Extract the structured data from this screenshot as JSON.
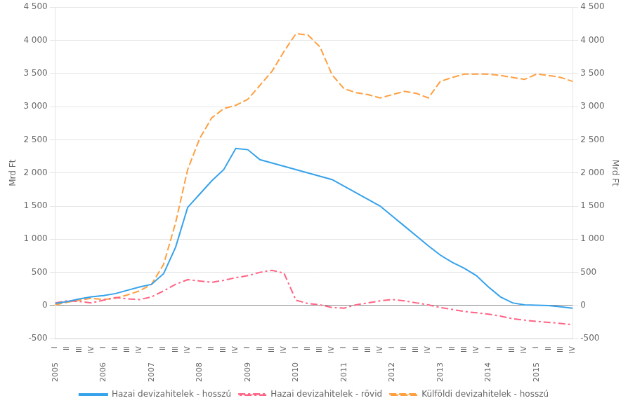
{
  "chart_data": {
    "type": "line",
    "y_label": "Mrd Ft",
    "y2_label": "Mrd Ft",
    "categories": [
      "I",
      "II",
      "III",
      "IV",
      "I",
      "II",
      "III",
      "IV",
      "I",
      "II",
      "III",
      "IV",
      "I",
      "II",
      "III",
      "IV",
      "I",
      "II",
      "III",
      "IV",
      "I",
      "II",
      "III",
      "IV",
      "I",
      "II",
      "III",
      "IV",
      "I",
      "II",
      "III",
      "IV",
      "I",
      "II",
      "III",
      "IV",
      "I",
      "II",
      "III",
      "IV",
      "I",
      "II",
      "III",
      "IV"
    ],
    "annotations": [
      "2005",
      "2006",
      "2007",
      "2008",
      "2009",
      "2010",
      "2011",
      "2012",
      "2013",
      "2014",
      "2015"
    ],
    "series": [
      {
        "name": "Hazai devizahitelek - hosszú",
        "line_style": "solid",
        "marker": "none",
        "values": [
          30,
          60,
          100,
          130,
          150,
          180,
          230,
          280,
          320,
          480,
          880,
          1480,
          1680,
          1880,
          2050,
          2370,
          2350,
          2200,
          2150,
          2100,
          2050,
          2000,
          1950,
          1900,
          1800,
          1700,
          1600,
          1500,
          1350,
          1200,
          1050,
          900,
          760,
          650,
          560,
          450,
          280,
          130,
          40,
          10,
          5,
          0,
          -20,
          -40
        ]
      },
      {
        "name": "Hazai devizahitelek - rövid",
        "line_style": "dashdot",
        "marker": "none",
        "values": [
          40,
          70,
          60,
          40,
          80,
          120,
          100,
          90,
          130,
          220,
          320,
          390,
          370,
          350,
          380,
          420,
          450,
          500,
          530,
          490,
          80,
          30,
          10,
          -30,
          -40,
          10,
          40,
          70,
          90,
          70,
          40,
          10,
          -30,
          -60,
          -90,
          -110,
          -130,
          -160,
          -200,
          -220,
          -240,
          -255,
          -270,
          -290
        ]
      },
      {
        "name": "Külföldi devizahitelek - hosszú",
        "line_style": "dashed",
        "marker": "none",
        "values": [
          10,
          50,
          80,
          110,
          90,
          110,
          160,
          220,
          320,
          620,
          1250,
          2050,
          2520,
          2830,
          2970,
          3020,
          3110,
          3320,
          3530,
          3830,
          4100,
          4080,
          3900,
          3480,
          3270,
          3210,
          3180,
          3130,
          3180,
          3230,
          3200,
          3130,
          3380,
          3440,
          3490,
          3490,
          3490,
          3470,
          3440,
          3410,
          3490,
          3470,
          3440,
          3380
        ]
      }
    ],
    "ylim": [
      -500,
      4500
    ],
    "yticks": [
      -500,
      0,
      500,
      {
        "value": 1000,
        "label": "1 000"
      },
      {
        "value": 1500,
        "label": "1 500"
      },
      {
        "value": 2000,
        "label": "2 000"
      },
      {
        "value": 2500,
        "label": "2 500"
      },
      {
        "value": 3000,
        "label": "3 000"
      },
      {
        "value": 3500,
        "label": "3 500"
      },
      {
        "value": 4000,
        "label": "4 000"
      },
      {
        "value": 4500,
        "label": "4 500"
      }
    ],
    "y2lim": [
      -500,
      4500
    ],
    "y2ticks": [
      -500,
      0,
      500,
      {
        "value": 1000,
        "label": "1 000"
      },
      {
        "value": 1500,
        "label": "1 500"
      },
      {
        "value": 2000,
        "label": "2 000"
      },
      {
        "value": 2500,
        "label": "2 500"
      },
      {
        "value": 3000,
        "label": "3 000"
      },
      {
        "value": 3500,
        "label": "3 500"
      },
      {
        "value": 4000,
        "label": "4 000"
      },
      {
        "value": 4500,
        "label": "4 500"
      }
    ],
    "grid": true,
    "legend": "bottom"
  }
}
